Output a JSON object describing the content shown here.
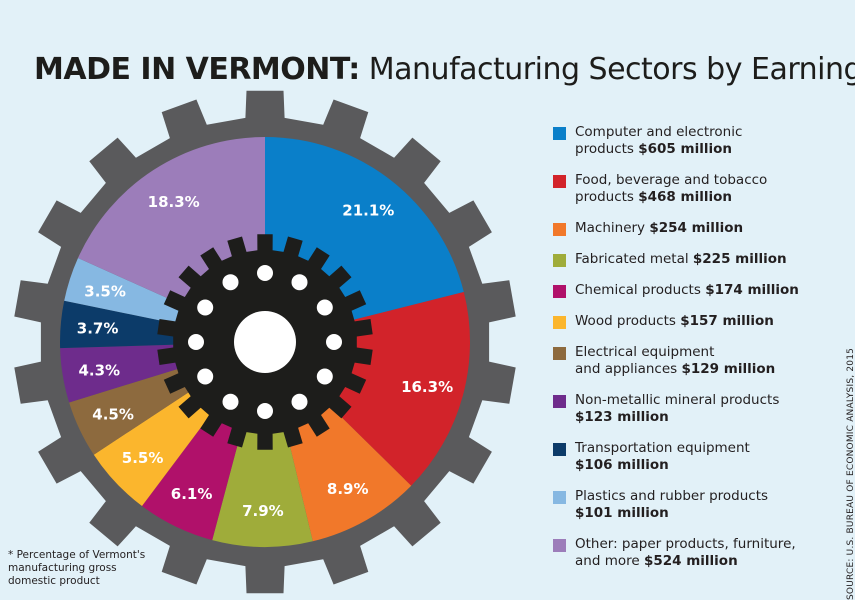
{
  "title": {
    "bold": "MADE IN VERMONT:",
    "rest": " Manufacturing Sectors by Earnings"
  },
  "chart_data": {
    "type": "pie",
    "slices": [
      {
        "label": "Computer and electronic products",
        "amount": "$605 million",
        "percent": 21.1,
        "color": "#0a7fc9"
      },
      {
        "label": "Food, beverage and tobacco products",
        "amount": "$468 million",
        "percent": 16.3,
        "color": "#d2232a"
      },
      {
        "label": "Machinery",
        "amount": "$254 million",
        "percent": 8.9,
        "color": "#f1782a"
      },
      {
        "label": "Fabricated metal",
        "amount": "$225 million",
        "percent": 7.9,
        "color": "#9fac3a"
      },
      {
        "label": "Chemical products",
        "amount": "$174 million",
        "percent": 6.1,
        "color": "#b0116a"
      },
      {
        "label": "Wood products",
        "amount": "$157 million",
        "percent": 5.5,
        "color": "#fbb62d"
      },
      {
        "label": "Electrical equipment and appliances",
        "amount": "$129 million",
        "percent": 4.5,
        "color": "#8d6a3e"
      },
      {
        "label": "Non-metallic mineral products",
        "amount": "$123 million",
        "percent": 4.3,
        "color": "#6e2c8c"
      },
      {
        "label": "Transportation equipment",
        "amount": "$106 million",
        "percent": 3.7,
        "color": "#0c3b69"
      },
      {
        "label": "Plastics and rubber products",
        "amount": "$101 million",
        "percent": 3.5,
        "color": "#86b8e2"
      },
      {
        "label": "Other: paper products, furniture, and more",
        "amount": "$524 million",
        "percent": 18.3,
        "color": "#9c7dba"
      }
    ]
  },
  "legend": [
    {
      "lines": [
        "Computer and electronic",
        "products "
      ],
      "amount": "$605 million"
    },
    {
      "lines": [
        "Food, beverage and tobacco",
        "products "
      ],
      "amount": "$468 million"
    },
    {
      "lines": [
        "Machinery "
      ],
      "amount": "$254 million"
    },
    {
      "lines": [
        "Fabricated metal "
      ],
      "amount": "$225 million"
    },
    {
      "lines": [
        "Chemical products "
      ],
      "amount": "$174 million"
    },
    {
      "lines": [
        "Wood products "
      ],
      "amount": "$157 million"
    },
    {
      "lines": [
        "Electrical equipment",
        "and appliances "
      ],
      "amount": "$129 million"
    },
    {
      "lines": [
        "Non-metallic mineral products",
        ""
      ],
      "amount": "$123 million"
    },
    {
      "lines": [
        "Transportation equipment",
        ""
      ],
      "amount": "$106 million"
    },
    {
      "lines": [
        "Plastics and rubber products",
        ""
      ],
      "amount": "$101 million"
    },
    {
      "lines": [
        "Other: paper products, furniture,",
        "and more "
      ],
      "amount": "$524 million"
    }
  ],
  "footnote": "* Percentage of Vermont's manufacturing gross domestic product",
  "source": "SOURCE: U.S. BUREAU OF ECONOMIC ANALYSIS, 2015",
  "colors": {
    "background": "#e2f1f8",
    "gear_outer": "#5a5a5c",
    "gear_inner": "#1d1d1b"
  }
}
